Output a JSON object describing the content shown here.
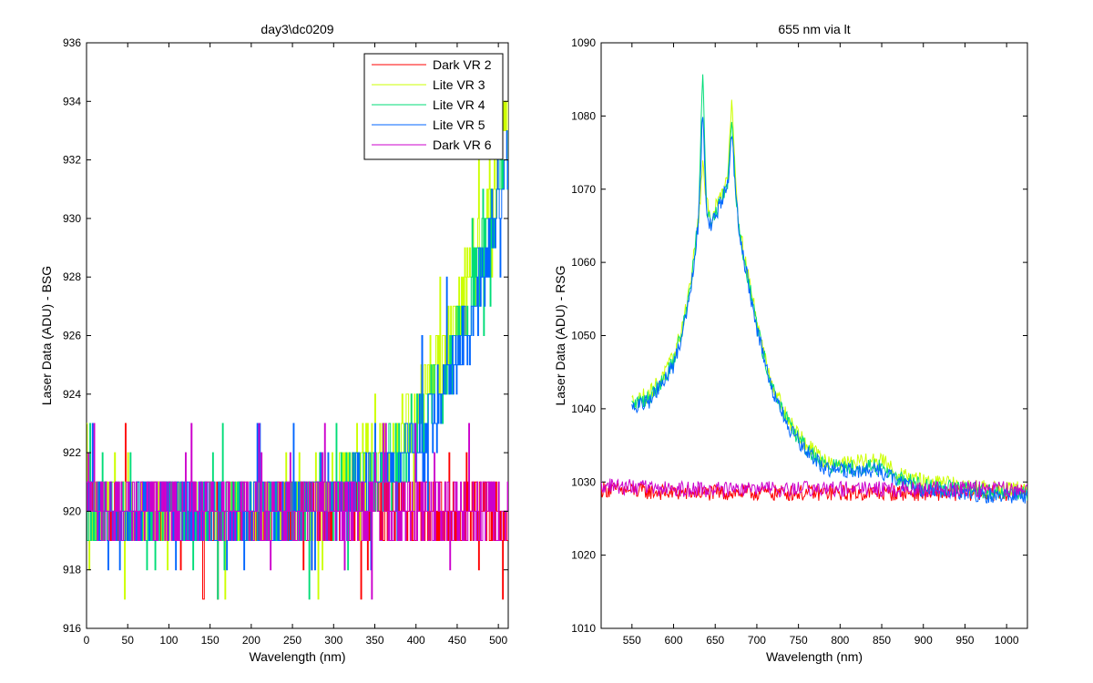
{
  "chart_data": [
    {
      "type": "line",
      "title": "day3\\dc0209",
      "xlabel": "Wavelength (nm)",
      "ylabel": "Laser Data (ADU) - BSG",
      "xlim": [
        0,
        512
      ],
      "ylim": [
        916,
        936
      ],
      "xticks": [
        0,
        50,
        100,
        150,
        200,
        250,
        300,
        350,
        400,
        450,
        500
      ],
      "yticks": [
        916,
        918,
        920,
        922,
        924,
        926,
        928,
        930,
        932,
        934,
        936
      ],
      "grid": false,
      "legend_position": "top-right",
      "series": [
        {
          "name": "Dark VR 2",
          "color": "#ff0000",
          "x": [
            0,
            100,
            200,
            300,
            350,
            400,
            450,
            500,
            512
          ],
          "y": [
            920,
            920,
            920,
            920,
            920,
            920,
            920,
            920,
            920
          ]
        },
        {
          "name": "Lite VR 3",
          "color": "#ccff00",
          "x": [
            0,
            100,
            200,
            250,
            300,
            330,
            360,
            380,
            400,
            420,
            440,
            460,
            480,
            500,
            512
          ],
          "y": [
            920,
            920,
            920,
            920.3,
            921,
            921.5,
            922,
            922.7,
            923.5,
            924.5,
            926,
            927.5,
            929.5,
            932,
            933
          ]
        },
        {
          "name": "Lite VR 4",
          "color": "#00dd77",
          "x": [
            0,
            100,
            200,
            250,
            300,
            330,
            360,
            380,
            400,
            420,
            440,
            460,
            480,
            500,
            512
          ],
          "y": [
            920,
            920,
            920,
            920,
            920.5,
            921,
            921.3,
            921.8,
            922.5,
            923.5,
            925,
            926.5,
            928.5,
            931,
            932
          ]
        },
        {
          "name": "Lite VR 5",
          "color": "#0066ff",
          "x": [
            0,
            100,
            200,
            250,
            300,
            330,
            360,
            380,
            400,
            420,
            440,
            460,
            480,
            500,
            512
          ],
          "y": [
            920,
            920,
            919.7,
            919.9,
            920.4,
            920.8,
            921.1,
            921.5,
            922.2,
            923.2,
            924.6,
            926.2,
            928.2,
            930.7,
            932
          ]
        },
        {
          "name": "Dark VR 6",
          "color": "#cc00cc",
          "x": [
            0,
            100,
            200,
            300,
            350,
            400,
            450,
            500,
            512
          ],
          "y": [
            920,
            920,
            920,
            920,
            920,
            920,
            920,
            920,
            920
          ]
        }
      ]
    },
    {
      "type": "line",
      "title": "655 nm via lt",
      "xlabel": "Wavelength (nm)",
      "ylabel": "Laser Data (ADU) - RSG",
      "xlim": [
        513,
        1025
      ],
      "ylim": [
        1010,
        1090
      ],
      "xticks": [
        550,
        600,
        650,
        700,
        750,
        800,
        850,
        900,
        950,
        1000
      ],
      "yticks": [
        1010,
        1020,
        1030,
        1040,
        1050,
        1060,
        1070,
        1080,
        1090
      ],
      "grid": false,
      "series": [
        {
          "name": "",
          "color": "#ff0000",
          "x": [
            513,
            600,
            700,
            800,
            900,
            1000,
            1025
          ],
          "y": [
            1029,
            1028.5,
            1028.5,
            1028.5,
            1028.5,
            1028.5,
            1029
          ]
        },
        {
          "name": "",
          "color": "#ccff00",
          "x": [
            550,
            570,
            590,
            600,
            610,
            620,
            630,
            635,
            640,
            645,
            660,
            665,
            670,
            675,
            680,
            690,
            700,
            710,
            720,
            740,
            760,
            780,
            800,
            850,
            870,
            900,
            950,
            1000,
            1025
          ],
          "y": [
            1041,
            1042,
            1045,
            1047,
            1051,
            1057,
            1066,
            1073,
            1068,
            1066,
            1070,
            1072,
            1083,
            1070,
            1064,
            1058,
            1052,
            1047,
            1043,
            1038,
            1035,
            1033,
            1032.5,
            1033,
            1031,
            1030,
            1029.5,
            1029,
            1029
          ]
        },
        {
          "name": "",
          "color": "#00dd77",
          "x": [
            550,
            570,
            590,
            600,
            610,
            620,
            630,
            635,
            640,
            645,
            660,
            665,
            670,
            675,
            680,
            690,
            700,
            710,
            720,
            740,
            760,
            780,
            800,
            850,
            870,
            900,
            950,
            1000,
            1025
          ],
          "y": [
            1040.5,
            1041.5,
            1044.5,
            1046.5,
            1050.5,
            1056.5,
            1066,
            1086,
            1067,
            1065.5,
            1069.5,
            1071,
            1080,
            1069,
            1063.5,
            1057.5,
            1051.5,
            1046.5,
            1042.5,
            1037.5,
            1034.5,
            1032.5,
            1032,
            1032,
            1030.5,
            1029.5,
            1029,
            1028.5,
            1028.5
          ]
        },
        {
          "name": "",
          "color": "#0066ff",
          "x": [
            550,
            570,
            590,
            600,
            610,
            620,
            630,
            635,
            640,
            645,
            660,
            665,
            670,
            675,
            680,
            690,
            700,
            710,
            720,
            740,
            760,
            780,
            800,
            850,
            870,
            900,
            950,
            1000,
            1025
          ],
          "y": [
            1040,
            1041,
            1044,
            1046,
            1050,
            1056,
            1065.5,
            1081,
            1066.5,
            1065,
            1069,
            1070.5,
            1078,
            1068.5,
            1063,
            1057,
            1051,
            1046,
            1042,
            1037,
            1034,
            1032,
            1031.5,
            1031.5,
            1030,
            1029,
            1028.5,
            1028,
            1028
          ]
        },
        {
          "name": "",
          "color": "#cc00cc",
          "x": [
            513,
            600,
            700,
            800,
            900,
            1000,
            1025
          ],
          "y": [
            1029.5,
            1029,
            1029,
            1029,
            1029,
            1029,
            1029
          ]
        }
      ]
    }
  ]
}
